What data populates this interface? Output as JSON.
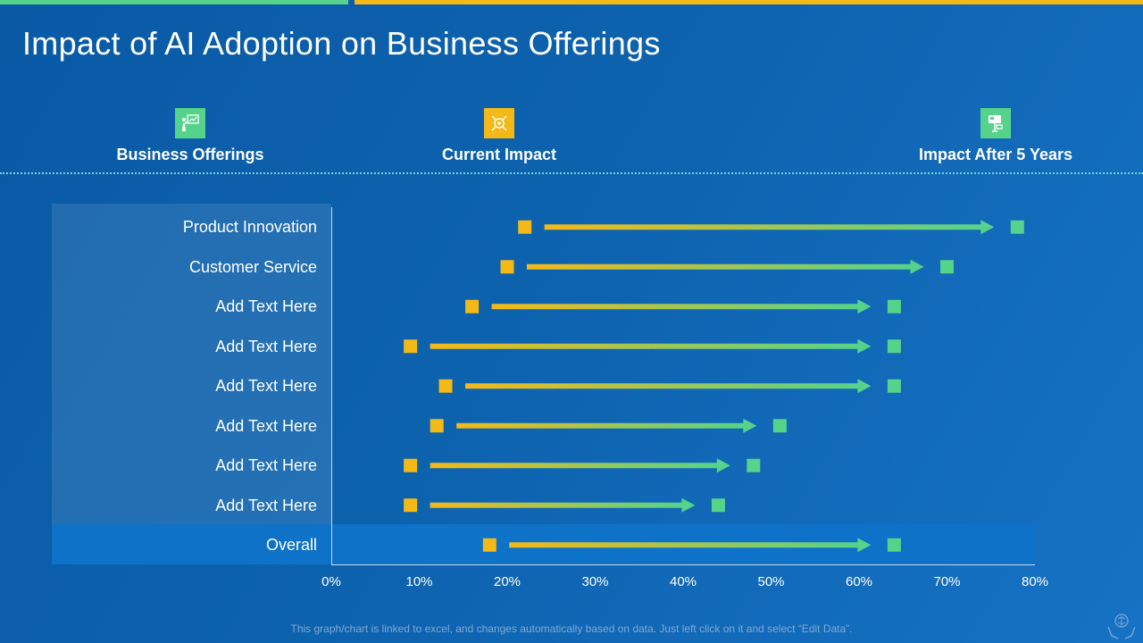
{
  "slide": {
    "title": "Impact of AI Adoption on Business Offerings",
    "footer": "This graph/chart is linked to excel, and changes automatically based on data. Just left click on it and select “Edit Data”."
  },
  "headers": [
    {
      "label": "Business Offerings",
      "icon": "presentation-icon",
      "color": "#56d38a"
    },
    {
      "label": "Current Impact",
      "icon": "target-icon",
      "color": "#f4b917"
    },
    {
      "label": "Impact After 5 Years",
      "icon": "billboard-icon",
      "color": "#56d38a"
    }
  ],
  "colors": {
    "current": "#f4b917",
    "future": "#56d38a",
    "panel": "#0d72c8"
  },
  "chart_data": {
    "type": "dot-arrow",
    "categories": [
      "Product Innovation",
      "Customer Service",
      "Add Text Here",
      "Add Text Here",
      "Add Text Here",
      "Add Text Here",
      "Add Text Here",
      "Add Text Here",
      "Overall"
    ],
    "series": [
      {
        "name": "Current Impact",
        "values": [
          22,
          20,
          16,
          9,
          13,
          12,
          9,
          9,
          18
        ]
      },
      {
        "name": "Impact After 5 Years",
        "values": [
          78,
          70,
          64,
          64,
          64,
          51,
          48,
          44,
          64
        ]
      }
    ],
    "xlim": [
      0,
      80
    ],
    "xticks": [
      "0%",
      "10%",
      "20%",
      "30%",
      "40%",
      "50%",
      "60%",
      "70%",
      "80%"
    ]
  }
}
